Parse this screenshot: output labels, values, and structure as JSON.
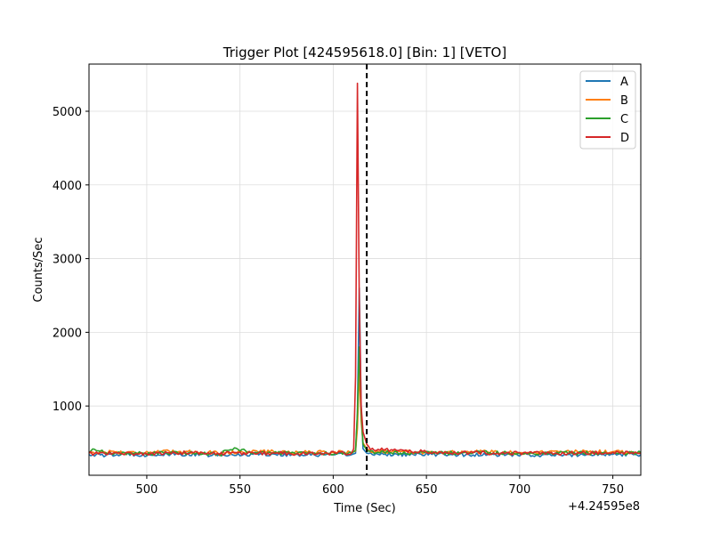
{
  "chart_data": {
    "type": "line",
    "title": "Trigger Plot [424595618.0] [Bin: 1] [VETO]",
    "xlabel": "Time (Sec)",
    "ylabel": "Counts/Sec",
    "x_offset_label": "+4.24595e8",
    "xlim": [
      469,
      765
    ],
    "ylim": [
      60,
      5640
    ],
    "x_ticks": [
      500,
      550,
      600,
      650,
      700,
      750
    ],
    "y_ticks": [
      1000,
      2000,
      3000,
      4000,
      5000
    ],
    "grid": true,
    "legend_position": "top-right",
    "trigger_time": 618,
    "colors": {
      "A": "#1f77b4",
      "B": "#ff7f0e",
      "C": "#2ca02c",
      "D": "#d62728",
      "trigger_line": "#000000"
    },
    "series": [
      {
        "name": "A",
        "color": "#1f77b4",
        "baseline": 340,
        "peak_time": 614,
        "peak": 2600,
        "points": [
          [
            469,
            345
          ],
          [
            480,
            330
          ],
          [
            490,
            350
          ],
          [
            500,
            335
          ],
          [
            520,
            345
          ],
          [
            540,
            330
          ],
          [
            560,
            350
          ],
          [
            580,
            340
          ],
          [
            600,
            335
          ],
          [
            610,
            340
          ],
          [
            612,
            360
          ],
          [
            613,
            900
          ],
          [
            614,
            2600
          ],
          [
            615,
            1000
          ],
          [
            616,
            420
          ],
          [
            618,
            360
          ],
          [
            620,
            350
          ],
          [
            640,
            340
          ],
          [
            660,
            345
          ],
          [
            680,
            335
          ],
          [
            700,
            340
          ],
          [
            720,
            330
          ],
          [
            740,
            345
          ],
          [
            765,
            340
          ]
        ]
      },
      {
        "name": "B",
        "color": "#ff7f0e",
        "baseline": 370,
        "peak_time": 614,
        "peak": 1500,
        "points": [
          [
            469,
            365
          ],
          [
            480,
            380
          ],
          [
            490,
            370
          ],
          [
            500,
            375
          ],
          [
            520,
            380
          ],
          [
            540,
            365
          ],
          [
            560,
            385
          ],
          [
            580,
            370
          ],
          [
            600,
            375
          ],
          [
            610,
            370
          ],
          [
            612,
            390
          ],
          [
            613,
            700
          ],
          [
            614,
            1500
          ],
          [
            615,
            800
          ],
          [
            616,
            500
          ],
          [
            618,
            420
          ],
          [
            620,
            390
          ],
          [
            640,
            375
          ],
          [
            660,
            370
          ],
          [
            680,
            380
          ],
          [
            700,
            365
          ],
          [
            720,
            375
          ],
          [
            740,
            380
          ],
          [
            765,
            370
          ]
        ]
      },
      {
        "name": "C",
        "color": "#2ca02c",
        "baseline": 360,
        "peak_time": 614,
        "peak": 1800,
        "points": [
          [
            469,
            360
          ],
          [
            472,
            420
          ],
          [
            480,
            360
          ],
          [
            500,
            355
          ],
          [
            520,
            365
          ],
          [
            540,
            350
          ],
          [
            544,
            420
          ],
          [
            560,
            360
          ],
          [
            580,
            365
          ],
          [
            600,
            355
          ],
          [
            610,
            360
          ],
          [
            612,
            400
          ],
          [
            613,
            900
          ],
          [
            614,
            1800
          ],
          [
            615,
            900
          ],
          [
            616,
            480
          ],
          [
            618,
            400
          ],
          [
            620,
            375
          ],
          [
            640,
            365
          ],
          [
            660,
            360
          ],
          [
            680,
            370
          ],
          [
            700,
            355
          ],
          [
            720,
            365
          ],
          [
            740,
            360
          ],
          [
            765,
            365
          ]
        ]
      },
      {
        "name": "D",
        "color": "#d62728",
        "baseline": 360,
        "peak_time": 613,
        "peak": 5380,
        "points": [
          [
            469,
            355
          ],
          [
            480,
            360
          ],
          [
            500,
            350
          ],
          [
            520,
            365
          ],
          [
            540,
            355
          ],
          [
            560,
            360
          ],
          [
            580,
            355
          ],
          [
            600,
            360
          ],
          [
            610,
            365
          ],
          [
            611,
            420
          ],
          [
            612,
            1400
          ],
          [
            613,
            5380
          ],
          [
            614,
            2400
          ],
          [
            615,
            1000
          ],
          [
            616,
            650
          ],
          [
            618,
            480
          ],
          [
            620,
            420
          ],
          [
            640,
            385
          ],
          [
            660,
            370
          ],
          [
            680,
            365
          ],
          [
            700,
            360
          ],
          [
            720,
            355
          ],
          [
            740,
            365
          ],
          [
            765,
            360
          ]
        ]
      }
    ]
  }
}
